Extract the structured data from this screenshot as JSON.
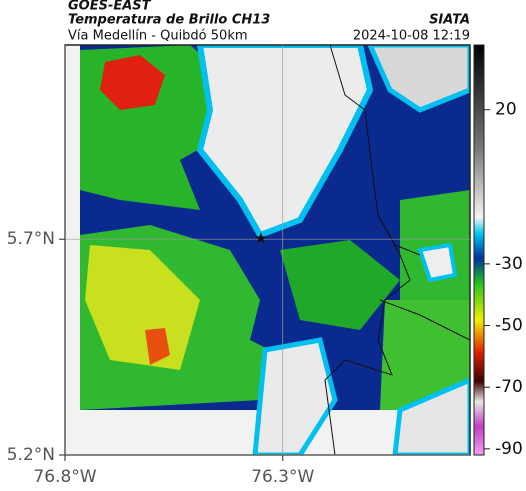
{
  "chart_data": {
    "type": "map",
    "title": "GOES-EAST",
    "subtitle": "Temperatura de Brillo CH13",
    "source": "SIATA",
    "route": "Vía Medellín - Quibdó 50km",
    "timestamp": "2024-10-08 12:19",
    "xlim": [
      -76.8,
      -75.87
    ],
    "ylim": [
      5.2,
      6.15
    ],
    "xticks": [
      {
        "value": -76.8,
        "label": "76.8°W"
      },
      {
        "value": -76.3,
        "label": "76.3°W"
      }
    ],
    "yticks": [
      {
        "value": 5.2,
        "label": "5.2°N"
      },
      {
        "value": 5.7,
        "label": "5.7°N"
      }
    ],
    "grid": true,
    "marker": {
      "lon": -76.35,
      "lat": 5.7
    },
    "colorbar": {
      "lim": [
        -92,
        41
      ],
      "ticks": [
        20,
        -30,
        -50,
        -70,
        -90
      ]
    }
  }
}
